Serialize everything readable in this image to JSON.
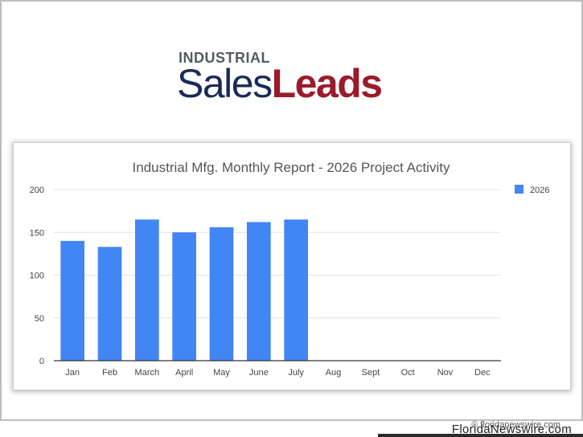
{
  "logo": {
    "line1": "INDUSTRIAL",
    "line2a": "Sales",
    "line2b": "Leads"
  },
  "watermark": "© floridanewswire.com",
  "footer_brand": "FloridaNewswire.com",
  "colors": {
    "bar": "#4285f4",
    "grid": "#e0e0e0",
    "axis": "#333333",
    "text": "#444444",
    "title": "#555555"
  },
  "chart_data": {
    "type": "bar",
    "title": "Industrial Mfg. Monthly Report - 2026 Project Activity",
    "xlabel": "",
    "ylabel": "",
    "categories": [
      "Jan",
      "Feb",
      "March",
      "April",
      "May",
      "June",
      "July",
      "Aug",
      "Sept",
      "Oct",
      "Nov",
      "Dec"
    ],
    "series": [
      {
        "name": "2026",
        "values": [
          140,
          133,
          165,
          150,
          156,
          162,
          165,
          null,
          null,
          null,
          null,
          null
        ]
      }
    ],
    "ylim": [
      0,
      200
    ],
    "yticks": [
      0,
      50,
      100,
      150,
      200
    ],
    "grid": true,
    "legend_position": "top-right"
  }
}
